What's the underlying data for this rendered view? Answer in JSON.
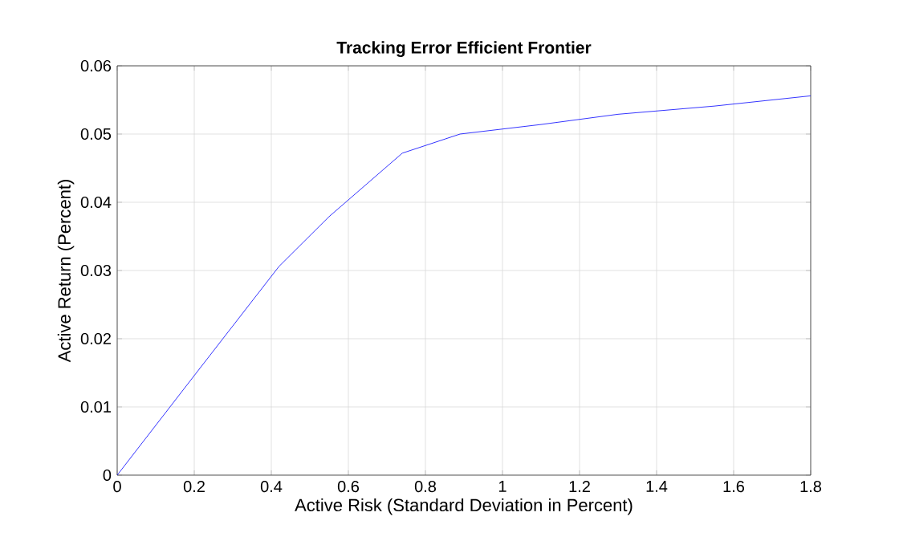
{
  "chart_data": {
    "type": "line",
    "title": "Tracking Error Efficient Frontier",
    "xlabel": "Active Risk (Standard Deviation in Percent)",
    "ylabel": "Active Return (Percent)",
    "x": [
      0,
      0.2,
      0.42,
      0.55,
      0.74,
      0.89,
      1.1,
      1.3,
      1.55,
      1.8
    ],
    "series": [
      {
        "color": "#0000ff",
        "values": [
          0,
          0.0146,
          0.0306,
          0.0379,
          0.0472,
          0.05,
          0.0514,
          0.0529,
          0.0541,
          0.0556
        ]
      }
    ],
    "xlim": [
      0,
      1.8
    ],
    "ylim": [
      0,
      0.06
    ],
    "xticks": [
      0,
      0.2,
      0.4,
      0.6,
      0.8,
      1,
      1.2,
      1.4,
      1.6,
      1.8
    ],
    "yticks": [
      0,
      0.01,
      0.02,
      0.03,
      0.04,
      0.05,
      0.06
    ],
    "grid": true,
    "line_style": "solid"
  }
}
